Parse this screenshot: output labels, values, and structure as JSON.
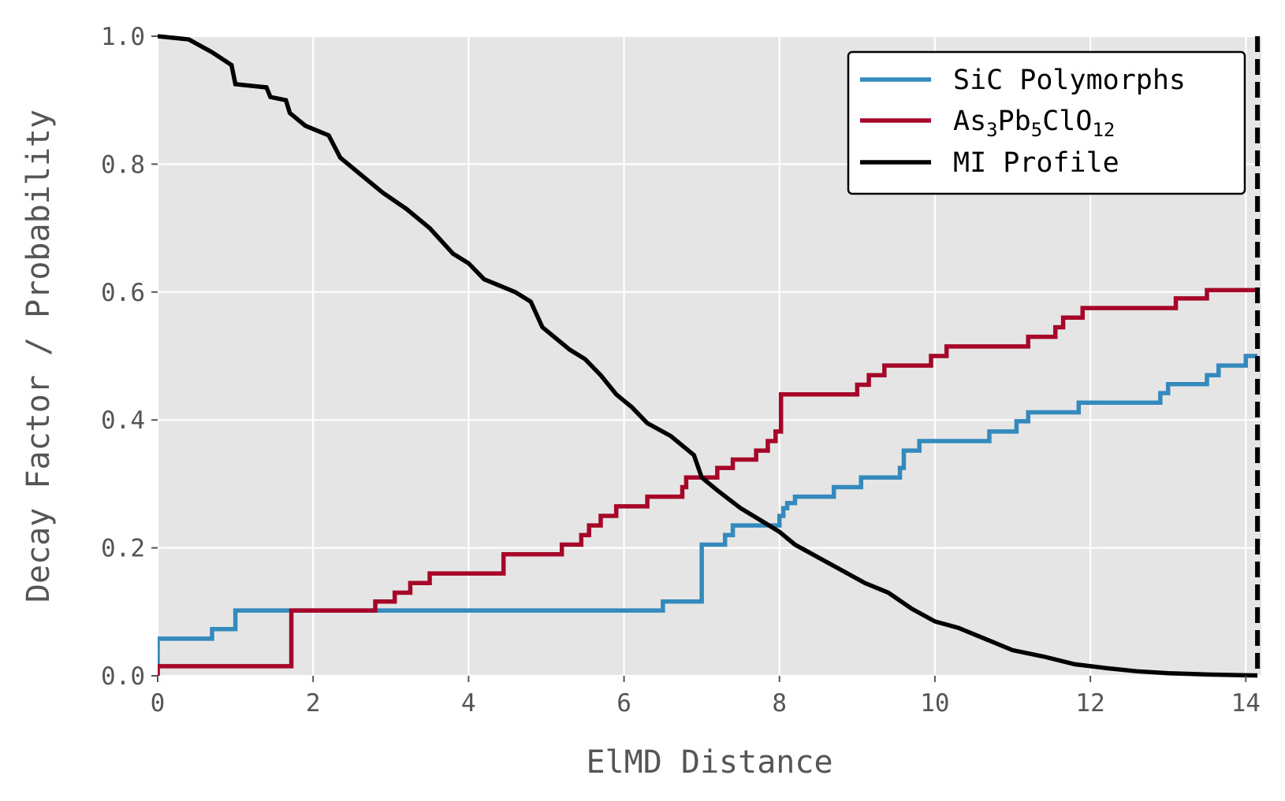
{
  "chart_data": {
    "type": "line",
    "xlabel": "ElMD Distance",
    "ylabel": "Decay Factor / Probability",
    "xlim": [
      0,
      14.2
    ],
    "ylim": [
      0,
      1.0
    ],
    "xticks": [
      0,
      2,
      4,
      6,
      8,
      10,
      12,
      14
    ],
    "xtick_labels": [
      "0",
      "2",
      "4",
      "6",
      "8",
      "10",
      "12",
      "14"
    ],
    "yticks": [
      0,
      0.2,
      0.4,
      0.6,
      0.8,
      1.0
    ],
    "ytick_labels": [
      "0.0",
      "0.2",
      "0.4",
      "0.6",
      "0.8",
      "1.0"
    ],
    "grid": true,
    "legend_position": "top-right",
    "vline": {
      "x": 14.15,
      "style": "dashed",
      "color": "#000000"
    },
    "series": [
      {
        "key": "sic",
        "name": "SiC Polymorphs",
        "color": "#348ABD",
        "style": "step",
        "x": [
          0,
          0.7,
          1.0,
          6.5,
          7.0,
          7.3,
          7.4,
          8.0,
          8.05,
          8.1,
          8.2,
          8.7,
          9.05,
          9.55,
          9.6,
          9.8,
          10.7,
          11.05,
          11.2,
          11.85,
          12.9,
          13.0,
          13.5,
          13.65,
          14.0,
          14.15
        ],
        "y": [
          0.058,
          0.073,
          0.102,
          0.116,
          0.205,
          0.22,
          0.235,
          0.25,
          0.262,
          0.27,
          0.28,
          0.295,
          0.31,
          0.325,
          0.352,
          0.367,
          0.382,
          0.398,
          0.412,
          0.427,
          0.442,
          0.456,
          0.47,
          0.485,
          0.5,
          0.5
        ]
      },
      {
        "key": "as",
        "name_main": "As",
        "name_parts": [
          "As",
          "3",
          "Pb",
          "5",
          "ClO",
          "12"
        ],
        "color": "#A60628",
        "style": "step",
        "x": [
          0,
          1.72,
          2.8,
          3.05,
          3.25,
          3.5,
          4.45,
          5.2,
          5.45,
          5.55,
          5.7,
          5.9,
          6.3,
          6.75,
          6.8,
          7.2,
          7.4,
          7.7,
          7.85,
          7.95,
          8.02,
          9.0,
          9.15,
          9.35,
          9.95,
          10.15,
          11.2,
          11.55,
          11.65,
          11.75,
          11.9,
          13.1,
          13.5,
          14.15
        ],
        "y": [
          0.015,
          0.102,
          0.116,
          0.13,
          0.145,
          0.16,
          0.19,
          0.205,
          0.22,
          0.235,
          0.25,
          0.265,
          0.28,
          0.295,
          0.31,
          0.325,
          0.338,
          0.352,
          0.367,
          0.382,
          0.44,
          0.455,
          0.47,
          0.485,
          0.5,
          0.515,
          0.53,
          0.545,
          0.56,
          0.56,
          0.575,
          0.59,
          0.603,
          0.603
        ]
      },
      {
        "key": "mi",
        "name": "MI Profile",
        "color": "#000000",
        "style": "line",
        "x": [
          0,
          0.4,
          0.7,
          0.95,
          1.0,
          1.4,
          1.45,
          1.65,
          1.7,
          1.9,
          2.2,
          2.35,
          2.6,
          2.9,
          3.2,
          3.5,
          3.8,
          4.0,
          4.2,
          4.4,
          4.6,
          4.8,
          4.95,
          5.1,
          5.3,
          5.5,
          5.7,
          5.9,
          6.1,
          6.3,
          6.6,
          6.9,
          7.0,
          7.2,
          7.5,
          7.8,
          8.0,
          8.2,
          8.5,
          8.8,
          9.1,
          9.4,
          9.7,
          10.0,
          10.3,
          10.7,
          11.0,
          11.4,
          11.8,
          12.2,
          12.6,
          13.0,
          13.5,
          14.0,
          14.15
        ],
        "y": [
          1.0,
          0.995,
          0.975,
          0.955,
          0.925,
          0.92,
          0.905,
          0.9,
          0.88,
          0.86,
          0.845,
          0.81,
          0.785,
          0.755,
          0.73,
          0.7,
          0.66,
          0.645,
          0.62,
          0.61,
          0.6,
          0.585,
          0.545,
          0.53,
          0.51,
          0.495,
          0.47,
          0.44,
          0.42,
          0.395,
          0.375,
          0.345,
          0.31,
          0.29,
          0.262,
          0.24,
          0.225,
          0.205,
          0.185,
          0.165,
          0.145,
          0.13,
          0.105,
          0.085,
          0.075,
          0.055,
          0.04,
          0.03,
          0.018,
          0.012,
          0.007,
          0.004,
          0.002,
          0.0008,
          0.0005
        ]
      }
    ]
  }
}
